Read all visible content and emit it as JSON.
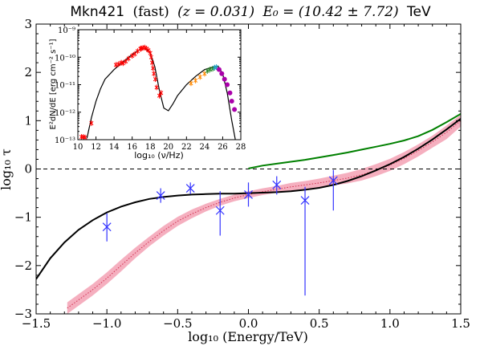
{
  "chart_data": [
    {
      "type": "line",
      "title": {
        "name": "Mkn421",
        "tag": "(fast)",
        "z": "(z = 0.031)",
        "e0": "E₀ = (10.42 ± 7.72)",
        "unit": "TeV"
      },
      "xlabel": "log₁₀ (Energy/TeV)",
      "ylabel": "log₁₀ τ",
      "xlim": [
        -1.5,
        1.5
      ],
      "ylim": [
        -3,
        3
      ],
      "xticks": [
        -1.5,
        -1.0,
        -0.5,
        0.0,
        0.5,
        1.0,
        1.5
      ],
      "xtick_labels": [
        "−1.5",
        "−1.0",
        "−0.5",
        "0.0",
        "0.5",
        "1.0",
        "1.5"
      ],
      "yticks": [
        -3,
        -2,
        -1,
        0,
        1,
        2,
        3
      ],
      "ytick_labels": [
        "−3",
        "−2",
        "−1",
        "0",
        "1",
        "2",
        "3"
      ],
      "reference_line": {
        "y": 0,
        "style": "dashed"
      },
      "series": [
        {
          "kind": "line",
          "color": "#000000",
          "points": [
            [
              -1.5,
              -2.28
            ],
            [
              -1.4,
              -1.85
            ],
            [
              -1.3,
              -1.52
            ],
            [
              -1.2,
              -1.26
            ],
            [
              -1.1,
              -1.06
            ],
            [
              -1.0,
              -0.9
            ],
            [
              -0.9,
              -0.78
            ],
            [
              -0.8,
              -0.69
            ],
            [
              -0.7,
              -0.62
            ],
            [
              -0.6,
              -0.58
            ],
            [
              -0.5,
              -0.55
            ],
            [
              -0.4,
              -0.53
            ],
            [
              -0.3,
              -0.52
            ],
            [
              -0.2,
              -0.51
            ],
            [
              -0.1,
              -0.51
            ],
            [
              0.0,
              -0.5
            ],
            [
              0.1,
              -0.49
            ],
            [
              0.2,
              -0.48
            ],
            [
              0.3,
              -0.46
            ],
            [
              0.4,
              -0.43
            ],
            [
              0.5,
              -0.39
            ],
            [
              0.6,
              -0.33
            ],
            [
              0.7,
              -0.25
            ],
            [
              0.8,
              -0.15
            ],
            [
              0.9,
              -0.03
            ],
            [
              1.0,
              0.1
            ],
            [
              1.1,
              0.25
            ],
            [
              1.2,
              0.42
            ],
            [
              1.3,
              0.61
            ],
            [
              1.4,
              0.82
            ],
            [
              1.5,
              1.04
            ]
          ]
        },
        {
          "kind": "line",
          "color": "#008000",
          "points": [
            [
              0.0,
              0.01
            ],
            [
              0.1,
              0.07
            ],
            [
              0.2,
              0.11
            ],
            [
              0.3,
              0.15
            ],
            [
              0.4,
              0.19
            ],
            [
              0.5,
              0.24
            ],
            [
              0.6,
              0.29
            ],
            [
              0.7,
              0.34
            ],
            [
              0.8,
              0.4
            ],
            [
              0.9,
              0.46
            ],
            [
              1.0,
              0.52
            ],
            [
              1.1,
              0.59
            ],
            [
              1.2,
              0.68
            ],
            [
              1.3,
              0.81
            ],
            [
              1.4,
              0.97
            ],
            [
              1.5,
              1.14
            ]
          ]
        },
        {
          "kind": "band",
          "color": "#f4a6b8",
          "x": [
            -1.28,
            -1.1,
            -1.0,
            -0.9,
            -0.8,
            -0.7,
            -0.6,
            -0.5,
            -0.4,
            -0.3,
            -0.2,
            -0.1,
            0.0,
            0.1,
            0.2,
            0.3,
            0.4,
            0.5,
            0.6,
            0.7,
            0.8,
            0.9,
            1.0,
            1.1,
            1.2,
            1.3,
            1.4,
            1.5
          ],
          "lower": [
            -3.0,
            -2.62,
            -2.38,
            -2.12,
            -1.85,
            -1.6,
            -1.38,
            -1.18,
            -1.02,
            -0.88,
            -0.76,
            -0.67,
            -0.6,
            -0.54,
            -0.49,
            -0.45,
            -0.41,
            -0.38,
            -0.34,
            -0.3,
            -0.24,
            -0.15,
            -0.04,
            0.1,
            0.26,
            0.44,
            0.62,
            0.88
          ],
          "mid": [
            -2.88,
            -2.5,
            -2.26,
            -2.0,
            -1.74,
            -1.5,
            -1.28,
            -1.08,
            -0.93,
            -0.8,
            -0.69,
            -0.6,
            -0.53,
            -0.47,
            -0.42,
            -0.37,
            -0.33,
            -0.29,
            -0.24,
            -0.19,
            -0.12,
            -0.03,
            0.08,
            0.22,
            0.38,
            0.56,
            0.76,
            1.0
          ],
          "upper": [
            -2.76,
            -2.38,
            -2.14,
            -1.88,
            -1.63,
            -1.4,
            -1.18,
            -0.99,
            -0.84,
            -0.72,
            -0.62,
            -0.53,
            -0.46,
            -0.4,
            -0.35,
            -0.29,
            -0.25,
            -0.2,
            -0.14,
            -0.08,
            0.0,
            0.1,
            0.21,
            0.35,
            0.51,
            0.69,
            0.9,
            1.12
          ]
        },
        {
          "kind": "errorbar",
          "color": "#3333ff",
          "x": [
            -1.0,
            -0.62,
            -0.41,
            -0.2,
            0.0,
            0.2,
            0.4,
            0.6
          ],
          "y": [
            -1.2,
            -0.55,
            -0.4,
            -0.86,
            -0.53,
            -0.33,
            -0.65,
            -0.24
          ],
          "yerr_low": [
            0.3,
            0.15,
            0.12,
            0.52,
            0.25,
            0.2,
            1.97,
            0.62
          ],
          "yerr_high": [
            0.28,
            0.15,
            0.12,
            0.4,
            0.25,
            0.18,
            0.28,
            0.22
          ]
        }
      ]
    },
    {
      "type": "scatter",
      "xlabel": "log₁₀ (ν/Hz)",
      "ylabel": "E²dN/dE [erg cm⁻² s⁻¹]",
      "xlim": [
        10,
        28
      ],
      "ylim_log10": [
        -13,
        -9
      ],
      "xticks": [
        10,
        12,
        14,
        16,
        18,
        20,
        22,
        24,
        26,
        28
      ],
      "xtick_labels": [
        "10",
        "12",
        "14",
        "16",
        "18",
        "20",
        "22",
        "24",
        "26",
        "28"
      ],
      "yticks_log10": [
        -13,
        -12,
        -11,
        -10,
        -9
      ],
      "ytick_labels": [
        "10⁻¹³",
        "10⁻¹²",
        "10⁻¹¹",
        "10⁻¹⁰",
        "10⁻⁹"
      ],
      "model_curve": {
        "color": "#000000",
        "points": [
          [
            11.0,
            -12.95
          ],
          [
            11.5,
            -12.2
          ],
          [
            12.0,
            -11.6
          ],
          [
            12.5,
            -11.15
          ],
          [
            13.0,
            -10.8
          ],
          [
            14.0,
            -10.45
          ],
          [
            15.0,
            -10.17
          ],
          [
            16.0,
            -9.9
          ],
          [
            17.0,
            -9.69
          ],
          [
            17.5,
            -9.7
          ],
          [
            18.0,
            -9.85
          ],
          [
            18.5,
            -10.35
          ],
          [
            19.0,
            -11.2
          ],
          [
            19.5,
            -11.85
          ],
          [
            20.0,
            -11.95
          ],
          [
            20.5,
            -11.7
          ],
          [
            21.0,
            -11.4
          ],
          [
            22.0,
            -11.0
          ],
          [
            23.0,
            -10.7
          ],
          [
            24.0,
            -10.45
          ],
          [
            25.0,
            -10.35
          ],
          [
            25.5,
            -10.33
          ],
          [
            26.0,
            -10.6
          ],
          [
            26.5,
            -11.3
          ],
          [
            27.0,
            -12.3
          ],
          [
            27.4,
            -13.0
          ]
        ]
      },
      "data_groups": [
        {
          "color": "#ff0000",
          "points": [
            [
              10.4,
              -12.9
            ],
            [
              10.6,
              -12.9
            ],
            [
              10.8,
              -12.92
            ],
            [
              11.5,
              -12.4
            ],
            [
              14.2,
              -10.28
            ],
            [
              14.5,
              -10.25
            ],
            [
              14.8,
              -10.2
            ],
            [
              15.0,
              -10.22
            ],
            [
              15.3,
              -10.15
            ],
            [
              15.6,
              -10.05
            ],
            [
              16.0,
              -9.95
            ],
            [
              16.3,
              -9.88
            ],
            [
              16.6,
              -9.78
            ],
            [
              16.9,
              -9.7
            ],
            [
              17.0,
              -9.68
            ],
            [
              17.2,
              -9.66
            ],
            [
              17.4,
              -9.65
            ],
            [
              17.6,
              -9.69
            ],
            [
              17.8,
              -9.75
            ],
            [
              18.0,
              -9.85
            ],
            [
              18.1,
              -10.0
            ],
            [
              18.2,
              -10.2
            ],
            [
              18.3,
              -10.4
            ],
            [
              18.4,
              -10.6
            ],
            [
              18.55,
              -10.8
            ],
            [
              18.7,
              -11.1
            ],
            [
              19.0,
              -11.4
            ],
            [
              19.2,
              -11.3
            ]
          ]
        },
        {
          "color": "#ff8800",
          "points": [
            [
              22.5,
              -10.95
            ],
            [
              23.0,
              -10.85
            ],
            [
              23.5,
              -10.72
            ],
            [
              24.0,
              -10.6
            ]
          ]
        },
        {
          "color": "#2a8a2a",
          "points": [
            [
              24.3,
              -10.5
            ],
            [
              24.6,
              -10.45
            ],
            [
              24.9,
              -10.42
            ]
          ]
        },
        {
          "color": "#20a0c0",
          "points": [
            [
              25.1,
              -10.38
            ],
            [
              25.3,
              -10.36
            ]
          ]
        },
        {
          "color": "#aa00aa",
          "points": [
            [
              25.6,
              -10.45
            ],
            [
              25.9,
              -10.6
            ],
            [
              26.2,
              -10.8
            ],
            [
              26.5,
              -11.0
            ],
            [
              26.8,
              -11.3
            ],
            [
              27.0,
              -11.6
            ],
            [
              27.3,
              -11.9
            ]
          ]
        }
      ]
    }
  ]
}
